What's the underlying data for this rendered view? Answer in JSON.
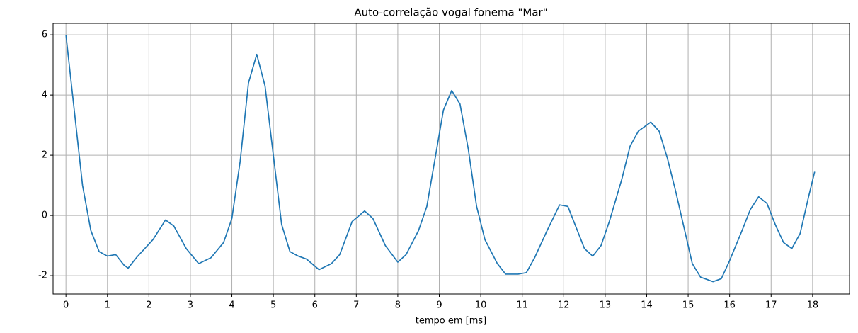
{
  "chart_data": {
    "type": "line",
    "title": "Auto-correlação vogal fonema \"Mar\"",
    "xlabel": "tempo em [ms]",
    "x": [
      0,
      0.2,
      0.4,
      0.6,
      0.8,
      1.0,
      1.2,
      1.4,
      1.5,
      1.7,
      1.9,
      2.1,
      2.4,
      2.6,
      2.9,
      3.2,
      3.5,
      3.8,
      4.0,
      4.2,
      4.4,
      4.6,
      4.8,
      5.0,
      5.2,
      5.4,
      5.6,
      5.8,
      6.1,
      6.4,
      6.6,
      6.9,
      7.2,
      7.4,
      7.7,
      8.0,
      8.2,
      8.5,
      8.7,
      8.9,
      9.1,
      9.3,
      9.5,
      9.7,
      9.9,
      10.1,
      10.4,
      10.6,
      10.9,
      11.1,
      11.3,
      11.6,
      11.9,
      12.1,
      12.3,
      12.5,
      12.7,
      12.9,
      13.1,
      13.4,
      13.6,
      13.8,
      14.1,
      14.3,
      14.5,
      14.7,
      14.9,
      15.1,
      15.3,
      15.6,
      15.8,
      16.0,
      16.3,
      16.5,
      16.7,
      16.9,
      17.1,
      17.3,
      17.5,
      17.7,
      17.9,
      18.05
    ],
    "series": [
      {
        "color": "#1f77b4",
        "values": [
          6.0,
          3.5,
          1.0,
          -0.5,
          -1.2,
          -1.35,
          -1.3,
          -1.65,
          -1.75,
          -1.4,
          -1.1,
          -0.8,
          -0.15,
          -0.35,
          -1.1,
          -1.6,
          -1.4,
          -0.9,
          -0.1,
          1.8,
          4.4,
          5.35,
          4.3,
          2.0,
          -0.3,
          -1.2,
          -1.35,
          -1.45,
          -1.8,
          -1.6,
          -1.3,
          -0.2,
          0.15,
          -0.1,
          -1.0,
          -1.55,
          -1.3,
          -0.5,
          0.3,
          1.9,
          3.5,
          4.15,
          3.7,
          2.2,
          0.3,
          -0.8,
          -1.6,
          -1.95,
          -1.95,
          -1.9,
          -1.4,
          -0.5,
          0.35,
          0.3,
          -0.4,
          -1.1,
          -1.35,
          -1.0,
          -0.2,
          1.2,
          2.3,
          2.8,
          3.1,
          2.8,
          1.9,
          0.8,
          -0.4,
          -1.6,
          -2.05,
          -2.2,
          -2.1,
          -1.5,
          -0.5,
          0.2,
          0.62,
          0.4,
          -0.3,
          -0.9,
          -1.1,
          -0.6,
          0.6,
          1.45
        ]
      }
    ],
    "xlim": [
      -0.31,
      18.89
    ],
    "ylim": [
      -2.61,
      6.38
    ],
    "xticks": [
      0,
      1,
      2,
      3,
      4,
      5,
      6,
      7,
      8,
      9,
      10,
      11,
      12,
      13,
      14,
      15,
      16,
      17,
      18
    ],
    "yticks": [
      -2,
      0,
      2,
      4,
      6
    ],
    "grid": true
  }
}
